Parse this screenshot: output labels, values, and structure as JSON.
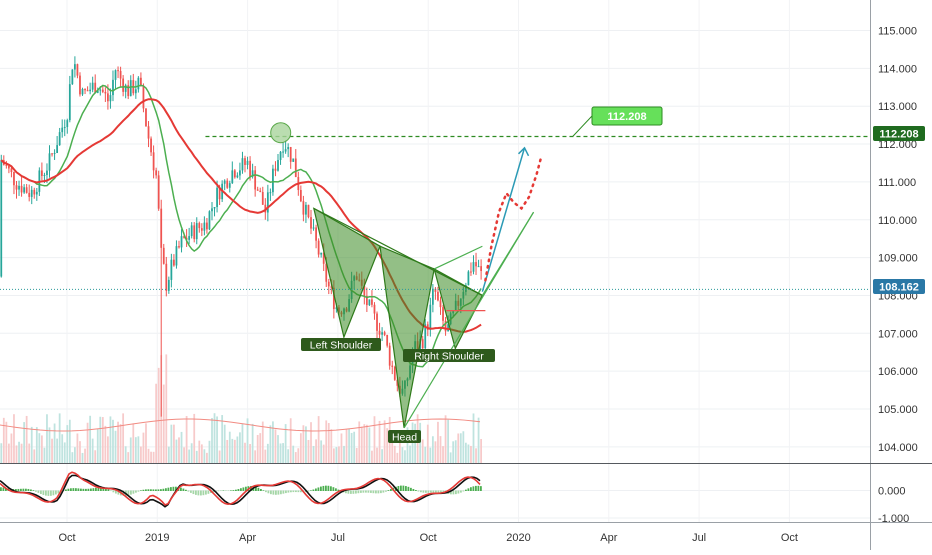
{
  "chart_data": {
    "type": "candlestick",
    "price_axis": {
      "ticks": [
        "115.000",
        "114.000",
        "113.000",
        "112.000",
        "111.000",
        "110.000",
        "109.000",
        "108.000",
        "107.000",
        "106.000",
        "105.000",
        "104.000"
      ],
      "ylim": [
        103.65,
        115.5
      ]
    },
    "oscillator_axis": {
      "ticks": [
        "0.000",
        "-1.000"
      ],
      "ylim": [
        -1.4,
        0.9
      ]
    },
    "time_axis": {
      "labels": [
        "Oct",
        "2019",
        "Apr",
        "Jul",
        "Oct",
        "2020",
        "Apr",
        "Jul",
        "Oct"
      ]
    },
    "last_price": {
      "label": "108.162",
      "value": 108.162
    },
    "target": {
      "label": "112.208",
      "value": 112.208,
      "callout": "112.208"
    },
    "pattern_labels": {
      "left_shoulder": "Left Shoulder",
      "head": "Head",
      "right_shoulder": "Right Shoulder"
    },
    "colors": {
      "up": "#26a69a",
      "down": "#ef5350",
      "ma_fast": "#4caf50",
      "ma_slow": "#e53935",
      "pattern_fill": "#3a8a22",
      "label_bg": "#2e5a1c",
      "target_line": "#2e8b22",
      "callout": "#66e05a",
      "arrow": "#2b9ab5",
      "projection": "#e53935",
      "last_price_badge": "#2a78a6",
      "target_badge": "#1f6b1f"
    }
  }
}
